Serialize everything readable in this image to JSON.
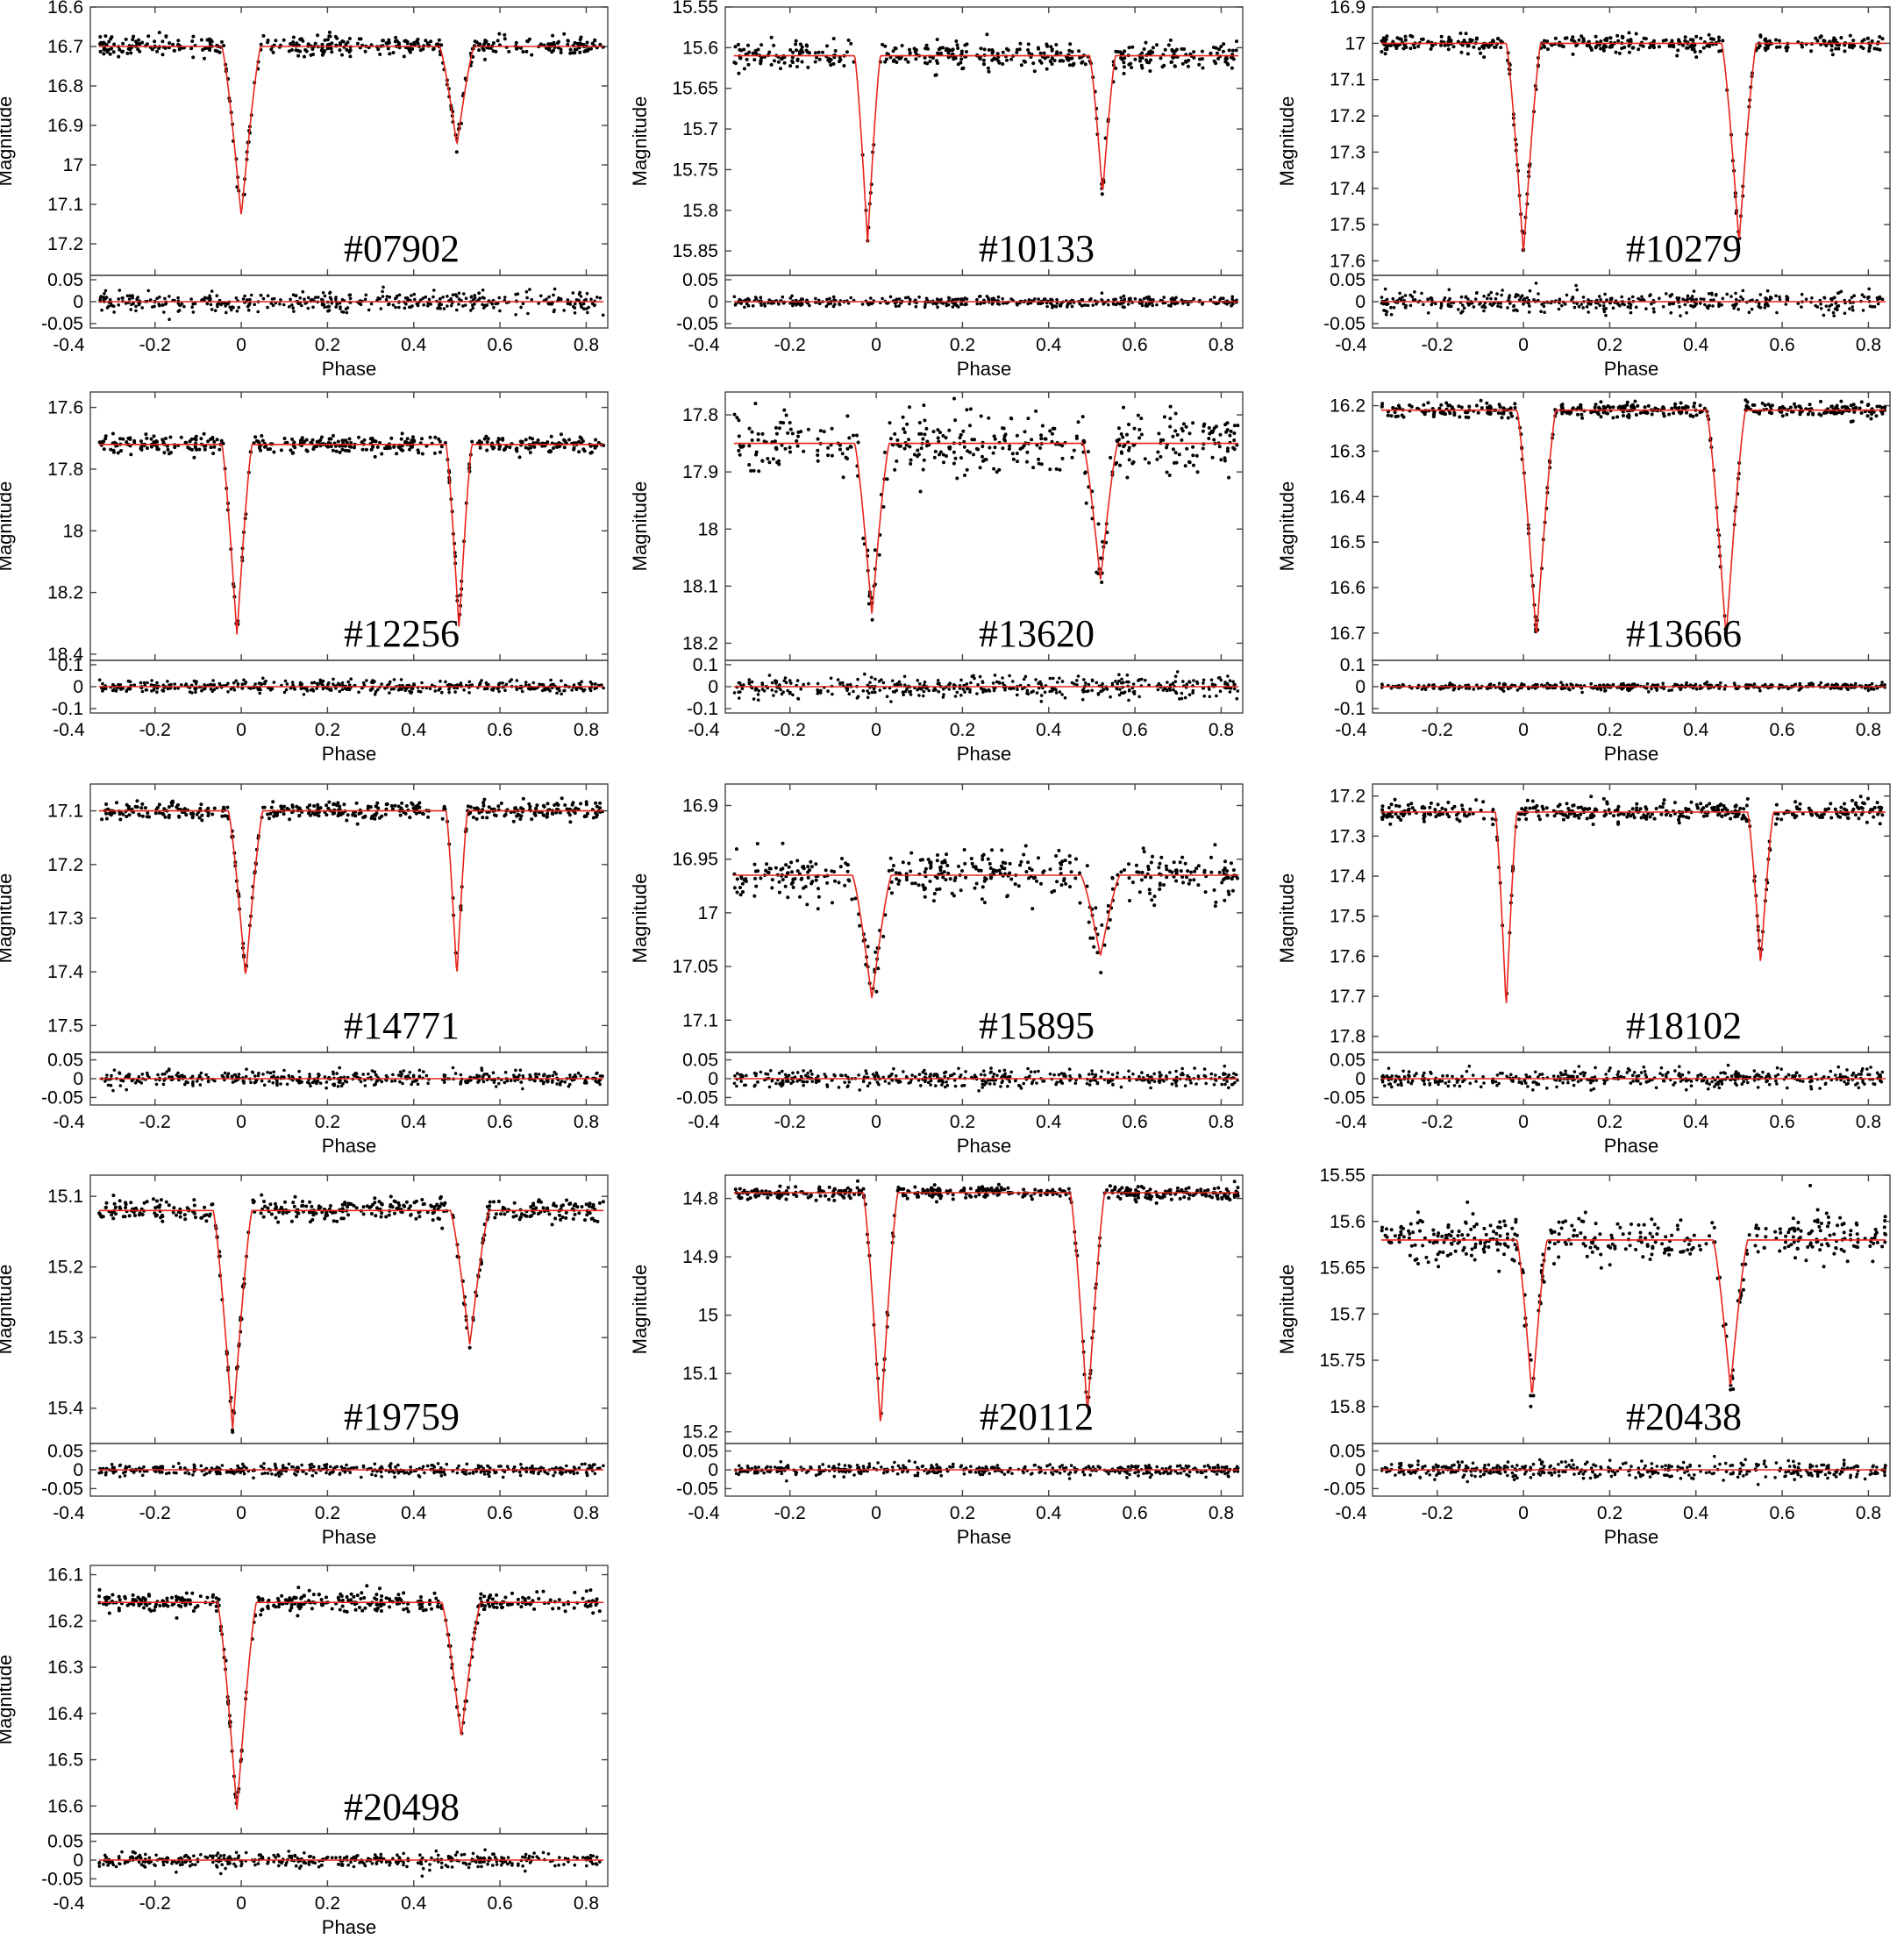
{
  "figure": {
    "x_axis_label": "Phase",
    "y_axis_label": "Magnitude",
    "model_color": "#e8241c",
    "point_color": "#000000"
  },
  "chart_data": [
    {
      "id": "#07902",
      "type": "scatter",
      "xlabel": "Phase",
      "ylabel": "Magnitude",
      "xlim": [
        -0.35,
        0.85
      ],
      "x_ticks": [
        "-0.4",
        "-0.2",
        "0",
        "0.2",
        "0.4",
        "0.6",
        "0.8"
      ],
      "y_ticks": [
        "16.6",
        "16.7",
        "16.8",
        "16.9",
        "17",
        "17.1",
        "17.2"
      ],
      "ylim": [
        16.6,
        17.28
      ],
      "y_reversed": true,
      "out_of_eclipse": 16.7,
      "primary": {
        "phase": 0.0,
        "depth": 17.13,
        "width": 0.045
      },
      "secondary": {
        "phase": 0.5,
        "depth": 16.95,
        "width": 0.04
      },
      "scatter": 0.012,
      "residual": {
        "ylim": [
          -0.06,
          0.06
        ],
        "ticks": [
          "0.05",
          "0",
          "-0.05"
        ],
        "scatter": 0.012
      }
    },
    {
      "id": "#10133",
      "type": "scatter",
      "xlabel": "Phase",
      "ylabel": "Magnitude",
      "xlim": [
        -0.35,
        0.85
      ],
      "x_ticks": [
        "-0.4",
        "-0.2",
        "0",
        "0.2",
        "0.4",
        "0.6",
        "0.8"
      ],
      "y_ticks": [
        "15.55",
        "15.6",
        "15.65",
        "15.7",
        "15.75",
        "15.8",
        "15.85"
      ],
      "ylim": [
        15.55,
        15.88
      ],
      "y_reversed": true,
      "out_of_eclipse": 15.61,
      "primary": {
        "phase": -0.02,
        "depth": 15.84,
        "width": 0.03
      },
      "secondary": {
        "phase": 0.525,
        "depth": 15.78,
        "width": 0.03
      },
      "scatter": 0.008,
      "residual": {
        "ylim": [
          -0.06,
          0.06
        ],
        "ticks": [
          "0.05",
          "0",
          "-0.05"
        ],
        "scatter": 0.006
      }
    },
    {
      "id": "#10279",
      "type": "scatter",
      "xlabel": "Phase",
      "ylabel": "Magnitude",
      "xlim": [
        -0.35,
        0.85
      ],
      "x_ticks": [
        "-0.4",
        "-0.2",
        "0",
        "0.2",
        "0.4",
        "0.6",
        "0.8"
      ],
      "y_ticks": [
        "16.9",
        "17",
        "17.1",
        "17.2",
        "17.3",
        "17.4",
        "17.5",
        "17.6"
      ],
      "ylim": [
        16.9,
        17.64
      ],
      "y_reversed": true,
      "out_of_eclipse": 17.0,
      "primary": {
        "phase": 0.0,
        "depth": 17.58,
        "width": 0.04
      },
      "secondary": {
        "phase": 0.5,
        "depth": 17.55,
        "width": 0.04
      },
      "scatter": 0.012,
      "residual": {
        "ylim": [
          -0.06,
          0.06
        ],
        "ticks": [
          "0.05",
          "0",
          "-0.05"
        ],
        "scatter": 0.012
      }
    },
    {
      "id": "#12256",
      "type": "scatter",
      "xlabel": "Phase",
      "ylabel": "Magnitude",
      "xlim": [
        -0.35,
        0.85
      ],
      "x_ticks": [
        "-0.4",
        "-0.2",
        "0",
        "0.2",
        "0.4",
        "0.6",
        "0.8"
      ],
      "y_ticks": [
        "17.6",
        "17.8",
        "18",
        "18.2",
        "18.4"
      ],
      "ylim": [
        17.55,
        18.42
      ],
      "y_reversed": true,
      "out_of_eclipse": 17.72,
      "primary": {
        "phase": -0.01,
        "depth": 18.34,
        "width": 0.035
      },
      "secondary": {
        "phase": 0.505,
        "depth": 18.32,
        "width": 0.03
      },
      "scatter": 0.015,
      "residual": {
        "ylim": [
          -0.12,
          0.12
        ],
        "ticks": [
          "0.1",
          "0",
          "-0.1"
        ],
        "scatter": 0.015
      }
    },
    {
      "id": "#13620",
      "type": "scatter",
      "xlabel": "Phase",
      "ylabel": "Magnitude",
      "xlim": [
        -0.35,
        0.85
      ],
      "x_ticks": [
        "-0.4",
        "-0.2",
        "0",
        "0.2",
        "0.4",
        "0.6",
        "0.8"
      ],
      "y_ticks": [
        "17.8",
        "17.9",
        "18",
        "18.1",
        "18.2"
      ],
      "ylim": [
        17.76,
        18.23
      ],
      "y_reversed": true,
      "out_of_eclipse": 17.85,
      "primary": {
        "phase": -0.01,
        "depth": 18.15,
        "width": 0.04
      },
      "secondary": {
        "phase": 0.52,
        "depth": 18.09,
        "width": 0.04
      },
      "scatter": 0.025,
      "residual": {
        "ylim": [
          -0.12,
          0.12
        ],
        "ticks": [
          "0.1",
          "0",
          "-0.1"
        ],
        "scatter": 0.025
      }
    },
    {
      "id": "#13666",
      "type": "scatter",
      "xlabel": "Phase",
      "ylabel": "Magnitude",
      "xlim": [
        -0.35,
        0.85
      ],
      "x_ticks": [
        "-0.4",
        "-0.2",
        "0",
        "0.2",
        "0.4",
        "0.6",
        "0.8"
      ],
      "y_ticks": [
        "16.2",
        "16.3",
        "16.4",
        "16.5",
        "16.6",
        "16.7"
      ],
      "ylim": [
        16.17,
        16.76
      ],
      "y_reversed": true,
      "out_of_eclipse": 16.21,
      "primary": {
        "phase": 0.03,
        "depth": 16.71,
        "width": 0.045
      },
      "secondary": {
        "phase": 0.47,
        "depth": 16.71,
        "width": 0.045
      },
      "scatter": 0.008,
      "residual": {
        "ylim": [
          -0.12,
          0.12
        ],
        "ticks": [
          "0.1",
          "0",
          "-0.1"
        ],
        "scatter": 0.008
      }
    },
    {
      "id": "#14771",
      "type": "scatter",
      "xlabel": "Phase",
      "ylabel": "Magnitude",
      "xlim": [
        -0.35,
        0.85
      ],
      "x_ticks": [
        "-0.4",
        "-0.2",
        "0",
        "0.2",
        "0.4",
        "0.6",
        "0.8"
      ],
      "y_ticks": [
        "17.1",
        "17.2",
        "17.3",
        "17.4",
        "17.5"
      ],
      "ylim": [
        17.05,
        17.55
      ],
      "y_reversed": true,
      "out_of_eclipse": 17.1,
      "primary": {
        "phase": 0.01,
        "depth": 17.41,
        "width": 0.04
      },
      "secondary": {
        "phase": 0.5,
        "depth": 17.41,
        "width": 0.025
      },
      "scatter": 0.008,
      "residual": {
        "ylim": [
          -0.07,
          0.07
        ],
        "ticks": [
          "0.05",
          "0",
          "-0.05"
        ],
        "scatter": 0.01
      }
    },
    {
      "id": "#15895",
      "type": "scatter",
      "xlabel": "Phase",
      "ylabel": "Magnitude",
      "xlim": [
        -0.35,
        0.85
      ],
      "x_ticks": [
        "-0.4",
        "-0.2",
        "0",
        "0.2",
        "0.4",
        "0.6",
        "0.8"
      ],
      "y_ticks": [
        "16.9",
        "16.95",
        "17",
        "17.05",
        "17.1"
      ],
      "ylim": [
        16.88,
        17.13
      ],
      "y_reversed": true,
      "out_of_eclipse": 16.965,
      "primary": {
        "phase": -0.01,
        "depth": 17.08,
        "width": 0.045
      },
      "secondary": {
        "phase": 0.52,
        "depth": 17.04,
        "width": 0.045
      },
      "scatter": 0.012,
      "residual": {
        "ylim": [
          -0.07,
          0.07
        ],
        "ticks": [
          "0.05",
          "0",
          "-0.05"
        ],
        "scatter": 0.012
      }
    },
    {
      "id": "#18102",
      "type": "scatter",
      "xlabel": "Phase",
      "ylabel": "Magnitude",
      "xlim": [
        -0.35,
        0.85
      ],
      "x_ticks": [
        "-0.4",
        "-0.2",
        "0",
        "0.2",
        "0.4",
        "0.6",
        "0.8"
      ],
      "y_ticks": [
        "17.2",
        "17.3",
        "17.4",
        "17.5",
        "17.6",
        "17.7",
        "17.8"
      ],
      "ylim": [
        17.17,
        17.84
      ],
      "y_reversed": true,
      "out_of_eclipse": 17.24,
      "primary": {
        "phase": -0.04,
        "depth": 17.73,
        "width": 0.025
      },
      "secondary": {
        "phase": 0.55,
        "depth": 17.62,
        "width": 0.03
      },
      "scatter": 0.012,
      "residual": {
        "ylim": [
          -0.07,
          0.07
        ],
        "ticks": [
          "0.05",
          "0",
          "-0.05"
        ],
        "scatter": 0.012
      }
    },
    {
      "id": "#19759",
      "type": "scatter",
      "xlabel": "Phase",
      "ylabel": "Magnitude",
      "xlim": [
        -0.35,
        0.85
      ],
      "x_ticks": [
        "-0.4",
        "-0.2",
        "0",
        "0.2",
        "0.4",
        "0.6",
        "0.8"
      ],
      "y_ticks": [
        "15.1",
        "15.2",
        "15.3",
        "15.4"
      ],
      "ylim": [
        15.07,
        15.45
      ],
      "y_reversed": true,
      "out_of_eclipse": 15.12,
      "primary": {
        "phase": -0.02,
        "depth": 15.43,
        "width": 0.045
      },
      "secondary": {
        "phase": 0.53,
        "depth": 15.31,
        "width": 0.045
      },
      "scatter": 0.008,
      "residual": {
        "ylim": [
          -0.07,
          0.07
        ],
        "ticks": [
          "0.05",
          "0",
          "-0.05"
        ],
        "scatter": 0.008
      }
    },
    {
      "id": "#20112",
      "type": "scatter",
      "xlabel": "Phase",
      "ylabel": "Magnitude",
      "xlim": [
        -0.35,
        0.85
      ],
      "x_ticks": [
        "-0.4",
        "-0.2",
        "0",
        "0.2",
        "0.4",
        "0.6",
        "0.8"
      ],
      "y_ticks": [
        "14.8",
        "14.9",
        "15",
        "15.1",
        "15.2"
      ],
      "ylim": [
        14.76,
        15.22
      ],
      "y_reversed": true,
      "out_of_eclipse": 14.79,
      "primary": {
        "phase": 0.01,
        "depth": 15.19,
        "width": 0.04
      },
      "secondary": {
        "phase": 0.49,
        "depth": 15.17,
        "width": 0.04
      },
      "scatter": 0.006,
      "residual": {
        "ylim": [
          -0.07,
          0.07
        ],
        "ticks": [
          "0.05",
          "0",
          "-0.05"
        ],
        "scatter": 0.008
      }
    },
    {
      "id": "#20438",
      "type": "scatter",
      "xlabel": "Phase",
      "ylabel": "Magnitude",
      "xlim": [
        -0.35,
        0.85
      ],
      "x_ticks": [
        "-0.4",
        "-0.2",
        "0",
        "0.2",
        "0.4",
        "0.6",
        "0.8"
      ],
      "y_ticks": [
        "15.55",
        "15.6",
        "15.65",
        "15.7",
        "15.75",
        "15.8"
      ],
      "ylim": [
        15.55,
        15.84
      ],
      "y_reversed": true,
      "out_of_eclipse": 15.62,
      "primary": {
        "phase": 0.02,
        "depth": 15.79,
        "width": 0.035
      },
      "secondary": {
        "phase": 0.48,
        "depth": 15.78,
        "width": 0.04
      },
      "scatter": 0.012,
      "residual": {
        "ylim": [
          -0.07,
          0.07
        ],
        "ticks": [
          "0.05",
          "0",
          "-0.05"
        ],
        "scatter": 0.012
      }
    },
    {
      "id": "#20498",
      "type": "scatter",
      "xlabel": "Phase",
      "ylabel": "Magnitude",
      "xlim": [
        -0.35,
        0.85
      ],
      "x_ticks": [
        "-0.4",
        "-0.2",
        "0",
        "0.2",
        "0.4",
        "0.6",
        "0.8"
      ],
      "y_ticks": [
        "16.1",
        "16.2",
        "16.3",
        "16.4",
        "16.5",
        "16.6"
      ],
      "ylim": [
        16.08,
        16.66
      ],
      "y_reversed": true,
      "out_of_eclipse": 16.16,
      "primary": {
        "phase": -0.01,
        "depth": 16.61,
        "width": 0.045
      },
      "secondary": {
        "phase": 0.51,
        "depth": 16.45,
        "width": 0.045
      },
      "scatter": 0.01,
      "residual": {
        "ylim": [
          -0.07,
          0.07
        ],
        "ticks": [
          "0.05",
          "0",
          "-0.05"
        ],
        "scatter": 0.01
      }
    }
  ]
}
